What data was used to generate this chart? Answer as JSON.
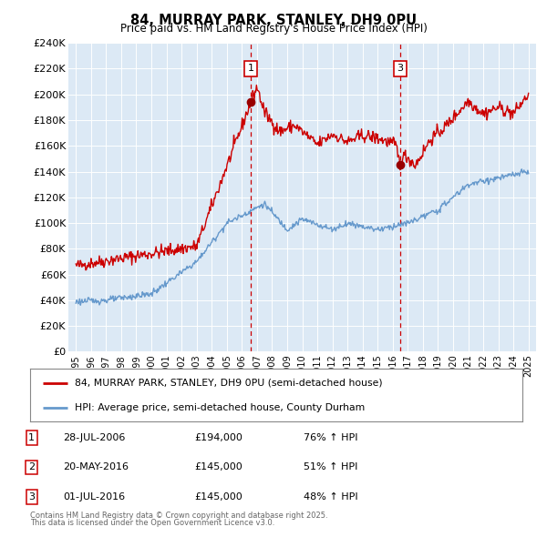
{
  "title": "84, MURRAY PARK, STANLEY, DH9 0PU",
  "subtitle": "Price paid vs. HM Land Registry's House Price Index (HPI)",
  "legend_line1": "84, MURRAY PARK, STANLEY, DH9 0PU (semi-detached house)",
  "legend_line2": "HPI: Average price, semi-detached house, County Durham",
  "footnote1": "Contains HM Land Registry data © Crown copyright and database right 2025.",
  "footnote2": "This data is licensed under the Open Government Licence v3.0.",
  "transactions": [
    {
      "num": "1",
      "date": "28-JUL-2006",
      "price": "£194,000",
      "hpi": "76% ↑ HPI"
    },
    {
      "num": "2",
      "date": "20-MAY-2016",
      "price": "£145,000",
      "hpi": "51% ↑ HPI"
    },
    {
      "num": "3",
      "date": "01-JUL-2016",
      "price": "£145,000",
      "hpi": "48% ↑ HPI"
    }
  ],
  "vline_dates": [
    2006.58,
    2016.5
  ],
  "marker_labels": [
    "1",
    "3"
  ],
  "marker_years": [
    2006.58,
    2016.5
  ],
  "dot_values": [
    194000,
    145000
  ],
  "ylim": [
    0,
    240000
  ],
  "yticks": [
    0,
    20000,
    40000,
    60000,
    80000,
    100000,
    120000,
    140000,
    160000,
    180000,
    200000,
    220000,
    240000
  ],
  "bg_color": "#dce9f5",
  "red_line_color": "#cc0000",
  "blue_line_color": "#6699cc",
  "vline_color": "#cc0000",
  "marker_box_color": "#cc0000",
  "dot_color": "#990000"
}
